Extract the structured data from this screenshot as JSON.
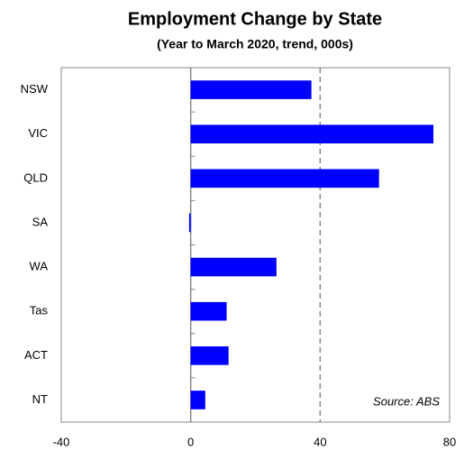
{
  "chart_data": {
    "type": "hbar",
    "title": "Employment Change by State",
    "subtitle": "(Year to March 2020, trend, 000s)",
    "annotation": "Source: ABS",
    "categories": [
      "NSW",
      "VIC",
      "QLD",
      "SA",
      "WA",
      "Tas",
      "ACT",
      "NT"
    ],
    "values": [
      37.3,
      75,
      58.2,
      -0.5,
      26.5,
      11.1,
      11.7,
      4.5
    ],
    "color": "#0000ff",
    "xlim": [
      -40,
      80
    ],
    "xticks": [
      -40,
      0,
      40,
      80
    ],
    "grid": true
  }
}
